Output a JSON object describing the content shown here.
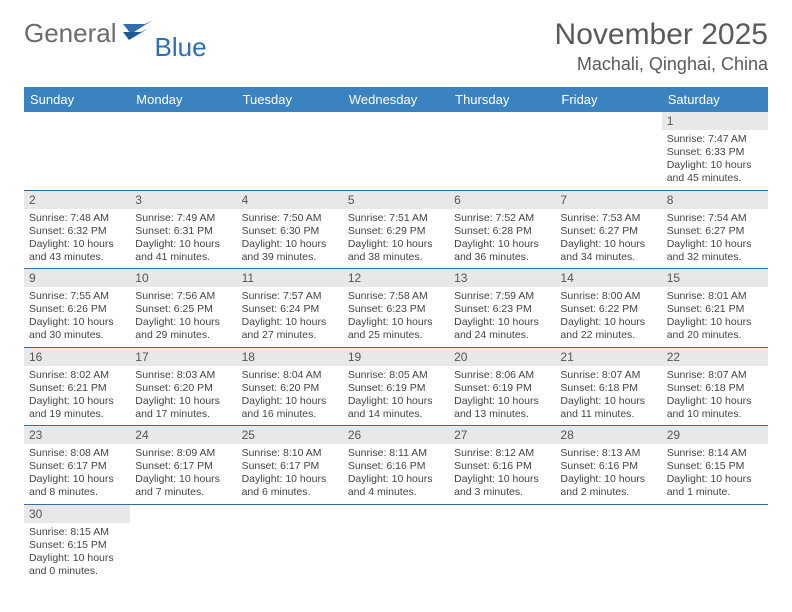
{
  "brand": {
    "part1": "General",
    "part2": "Blue"
  },
  "title": "November 2025",
  "location": "Machali, Qinghai, China",
  "colors": {
    "header_bg": "#3b83c0",
    "header_text": "#ffffff",
    "rule": "#2f6fb0",
    "daynum_bg": "#e8e8e8",
    "text": "#444444",
    "brand_gray": "#6b6b6b",
    "brand_blue": "#2f6fb0"
  },
  "weekdays": [
    "Sunday",
    "Monday",
    "Tuesday",
    "Wednesday",
    "Thursday",
    "Friday",
    "Saturday"
  ],
  "weeks": [
    [
      {
        "empty": true
      },
      {
        "empty": true
      },
      {
        "empty": true
      },
      {
        "empty": true
      },
      {
        "empty": true
      },
      {
        "empty": true
      },
      {
        "n": "1",
        "sr": "Sunrise: 7:47 AM",
        "ss": "Sunset: 6:33 PM",
        "dl": "Daylight: 10 hours and 45 minutes."
      }
    ],
    [
      {
        "n": "2",
        "sr": "Sunrise: 7:48 AM",
        "ss": "Sunset: 6:32 PM",
        "dl": "Daylight: 10 hours and 43 minutes."
      },
      {
        "n": "3",
        "sr": "Sunrise: 7:49 AM",
        "ss": "Sunset: 6:31 PM",
        "dl": "Daylight: 10 hours and 41 minutes."
      },
      {
        "n": "4",
        "sr": "Sunrise: 7:50 AM",
        "ss": "Sunset: 6:30 PM",
        "dl": "Daylight: 10 hours and 39 minutes."
      },
      {
        "n": "5",
        "sr": "Sunrise: 7:51 AM",
        "ss": "Sunset: 6:29 PM",
        "dl": "Daylight: 10 hours and 38 minutes."
      },
      {
        "n": "6",
        "sr": "Sunrise: 7:52 AM",
        "ss": "Sunset: 6:28 PM",
        "dl": "Daylight: 10 hours and 36 minutes."
      },
      {
        "n": "7",
        "sr": "Sunrise: 7:53 AM",
        "ss": "Sunset: 6:27 PM",
        "dl": "Daylight: 10 hours and 34 minutes."
      },
      {
        "n": "8",
        "sr": "Sunrise: 7:54 AM",
        "ss": "Sunset: 6:27 PM",
        "dl": "Daylight: 10 hours and 32 minutes."
      }
    ],
    [
      {
        "n": "9",
        "sr": "Sunrise: 7:55 AM",
        "ss": "Sunset: 6:26 PM",
        "dl": "Daylight: 10 hours and 30 minutes."
      },
      {
        "n": "10",
        "sr": "Sunrise: 7:56 AM",
        "ss": "Sunset: 6:25 PM",
        "dl": "Daylight: 10 hours and 29 minutes."
      },
      {
        "n": "11",
        "sr": "Sunrise: 7:57 AM",
        "ss": "Sunset: 6:24 PM",
        "dl": "Daylight: 10 hours and 27 minutes."
      },
      {
        "n": "12",
        "sr": "Sunrise: 7:58 AM",
        "ss": "Sunset: 6:23 PM",
        "dl": "Daylight: 10 hours and 25 minutes."
      },
      {
        "n": "13",
        "sr": "Sunrise: 7:59 AM",
        "ss": "Sunset: 6:23 PM",
        "dl": "Daylight: 10 hours and 24 minutes."
      },
      {
        "n": "14",
        "sr": "Sunrise: 8:00 AM",
        "ss": "Sunset: 6:22 PM",
        "dl": "Daylight: 10 hours and 22 minutes."
      },
      {
        "n": "15",
        "sr": "Sunrise: 8:01 AM",
        "ss": "Sunset: 6:21 PM",
        "dl": "Daylight: 10 hours and 20 minutes."
      }
    ],
    [
      {
        "n": "16",
        "sr": "Sunrise: 8:02 AM",
        "ss": "Sunset: 6:21 PM",
        "dl": "Daylight: 10 hours and 19 minutes."
      },
      {
        "n": "17",
        "sr": "Sunrise: 8:03 AM",
        "ss": "Sunset: 6:20 PM",
        "dl": "Daylight: 10 hours and 17 minutes."
      },
      {
        "n": "18",
        "sr": "Sunrise: 8:04 AM",
        "ss": "Sunset: 6:20 PM",
        "dl": "Daylight: 10 hours and 16 minutes."
      },
      {
        "n": "19",
        "sr": "Sunrise: 8:05 AM",
        "ss": "Sunset: 6:19 PM",
        "dl": "Daylight: 10 hours and 14 minutes."
      },
      {
        "n": "20",
        "sr": "Sunrise: 8:06 AM",
        "ss": "Sunset: 6:19 PM",
        "dl": "Daylight: 10 hours and 13 minutes."
      },
      {
        "n": "21",
        "sr": "Sunrise: 8:07 AM",
        "ss": "Sunset: 6:18 PM",
        "dl": "Daylight: 10 hours and 11 minutes."
      },
      {
        "n": "22",
        "sr": "Sunrise: 8:07 AM",
        "ss": "Sunset: 6:18 PM",
        "dl": "Daylight: 10 hours and 10 minutes."
      }
    ],
    [
      {
        "n": "23",
        "sr": "Sunrise: 8:08 AM",
        "ss": "Sunset: 6:17 PM",
        "dl": "Daylight: 10 hours and 8 minutes."
      },
      {
        "n": "24",
        "sr": "Sunrise: 8:09 AM",
        "ss": "Sunset: 6:17 PM",
        "dl": "Daylight: 10 hours and 7 minutes."
      },
      {
        "n": "25",
        "sr": "Sunrise: 8:10 AM",
        "ss": "Sunset: 6:17 PM",
        "dl": "Daylight: 10 hours and 6 minutes."
      },
      {
        "n": "26",
        "sr": "Sunrise: 8:11 AM",
        "ss": "Sunset: 6:16 PM",
        "dl": "Daylight: 10 hours and 4 minutes."
      },
      {
        "n": "27",
        "sr": "Sunrise: 8:12 AM",
        "ss": "Sunset: 6:16 PM",
        "dl": "Daylight: 10 hours and 3 minutes."
      },
      {
        "n": "28",
        "sr": "Sunrise: 8:13 AM",
        "ss": "Sunset: 6:16 PM",
        "dl": "Daylight: 10 hours and 2 minutes."
      },
      {
        "n": "29",
        "sr": "Sunrise: 8:14 AM",
        "ss": "Sunset: 6:15 PM",
        "dl": "Daylight: 10 hours and 1 minute."
      }
    ],
    [
      {
        "n": "30",
        "sr": "Sunrise: 8:15 AM",
        "ss": "Sunset: 6:15 PM",
        "dl": "Daylight: 10 hours and 0 minutes."
      },
      {
        "empty": true
      },
      {
        "empty": true
      },
      {
        "empty": true
      },
      {
        "empty": true
      },
      {
        "empty": true
      },
      {
        "empty": true
      }
    ]
  ]
}
